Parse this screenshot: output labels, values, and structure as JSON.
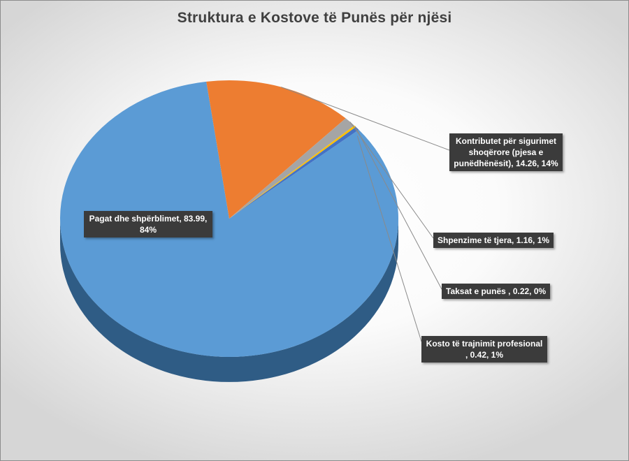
{
  "chart_data": {
    "type": "pie",
    "title": "Struktura e Kostove të Punës për njësi",
    "slices": [
      {
        "label": "Pagat dhe shpërblimet",
        "value": 83.99,
        "percent": "84%",
        "color": "#5B9BD5",
        "side": "#2F5C85",
        "text": "Pagat dhe shpërblimet, 83.99, 84%"
      },
      {
        "label": "Kontributet për sigurimet shoqërore (pjesa e punëdhënësit)",
        "value": 14.26,
        "percent": "14%",
        "color": "#ED7D31",
        "side": "#9C4F1C",
        "text": "Kontributet për sigurimet shoqërore (pjesa e punëdhënësit), 14.26, 14%"
      },
      {
        "label": "Shpenzime të tjera",
        "value": 1.16,
        "percent": "1%",
        "color": "#A5A5A5",
        "side": "#6B6B6B",
        "text": "Shpenzime të tjera, 1.16, 1%"
      },
      {
        "label": "Taksat e punës",
        "value": 0.22,
        "percent": "0%",
        "color": "#FFC000",
        "side": "#A67C00",
        "text": "Taksat e punës , 0.22, 0%"
      },
      {
        "label": "Kosto të trajnimit profesional",
        "value": 0.42,
        "percent": "1%",
        "color": "#4472C4",
        "side": "#2B4A80",
        "text": "Kosto të trajnimit profesional , 0.42, 1%"
      }
    ]
  }
}
